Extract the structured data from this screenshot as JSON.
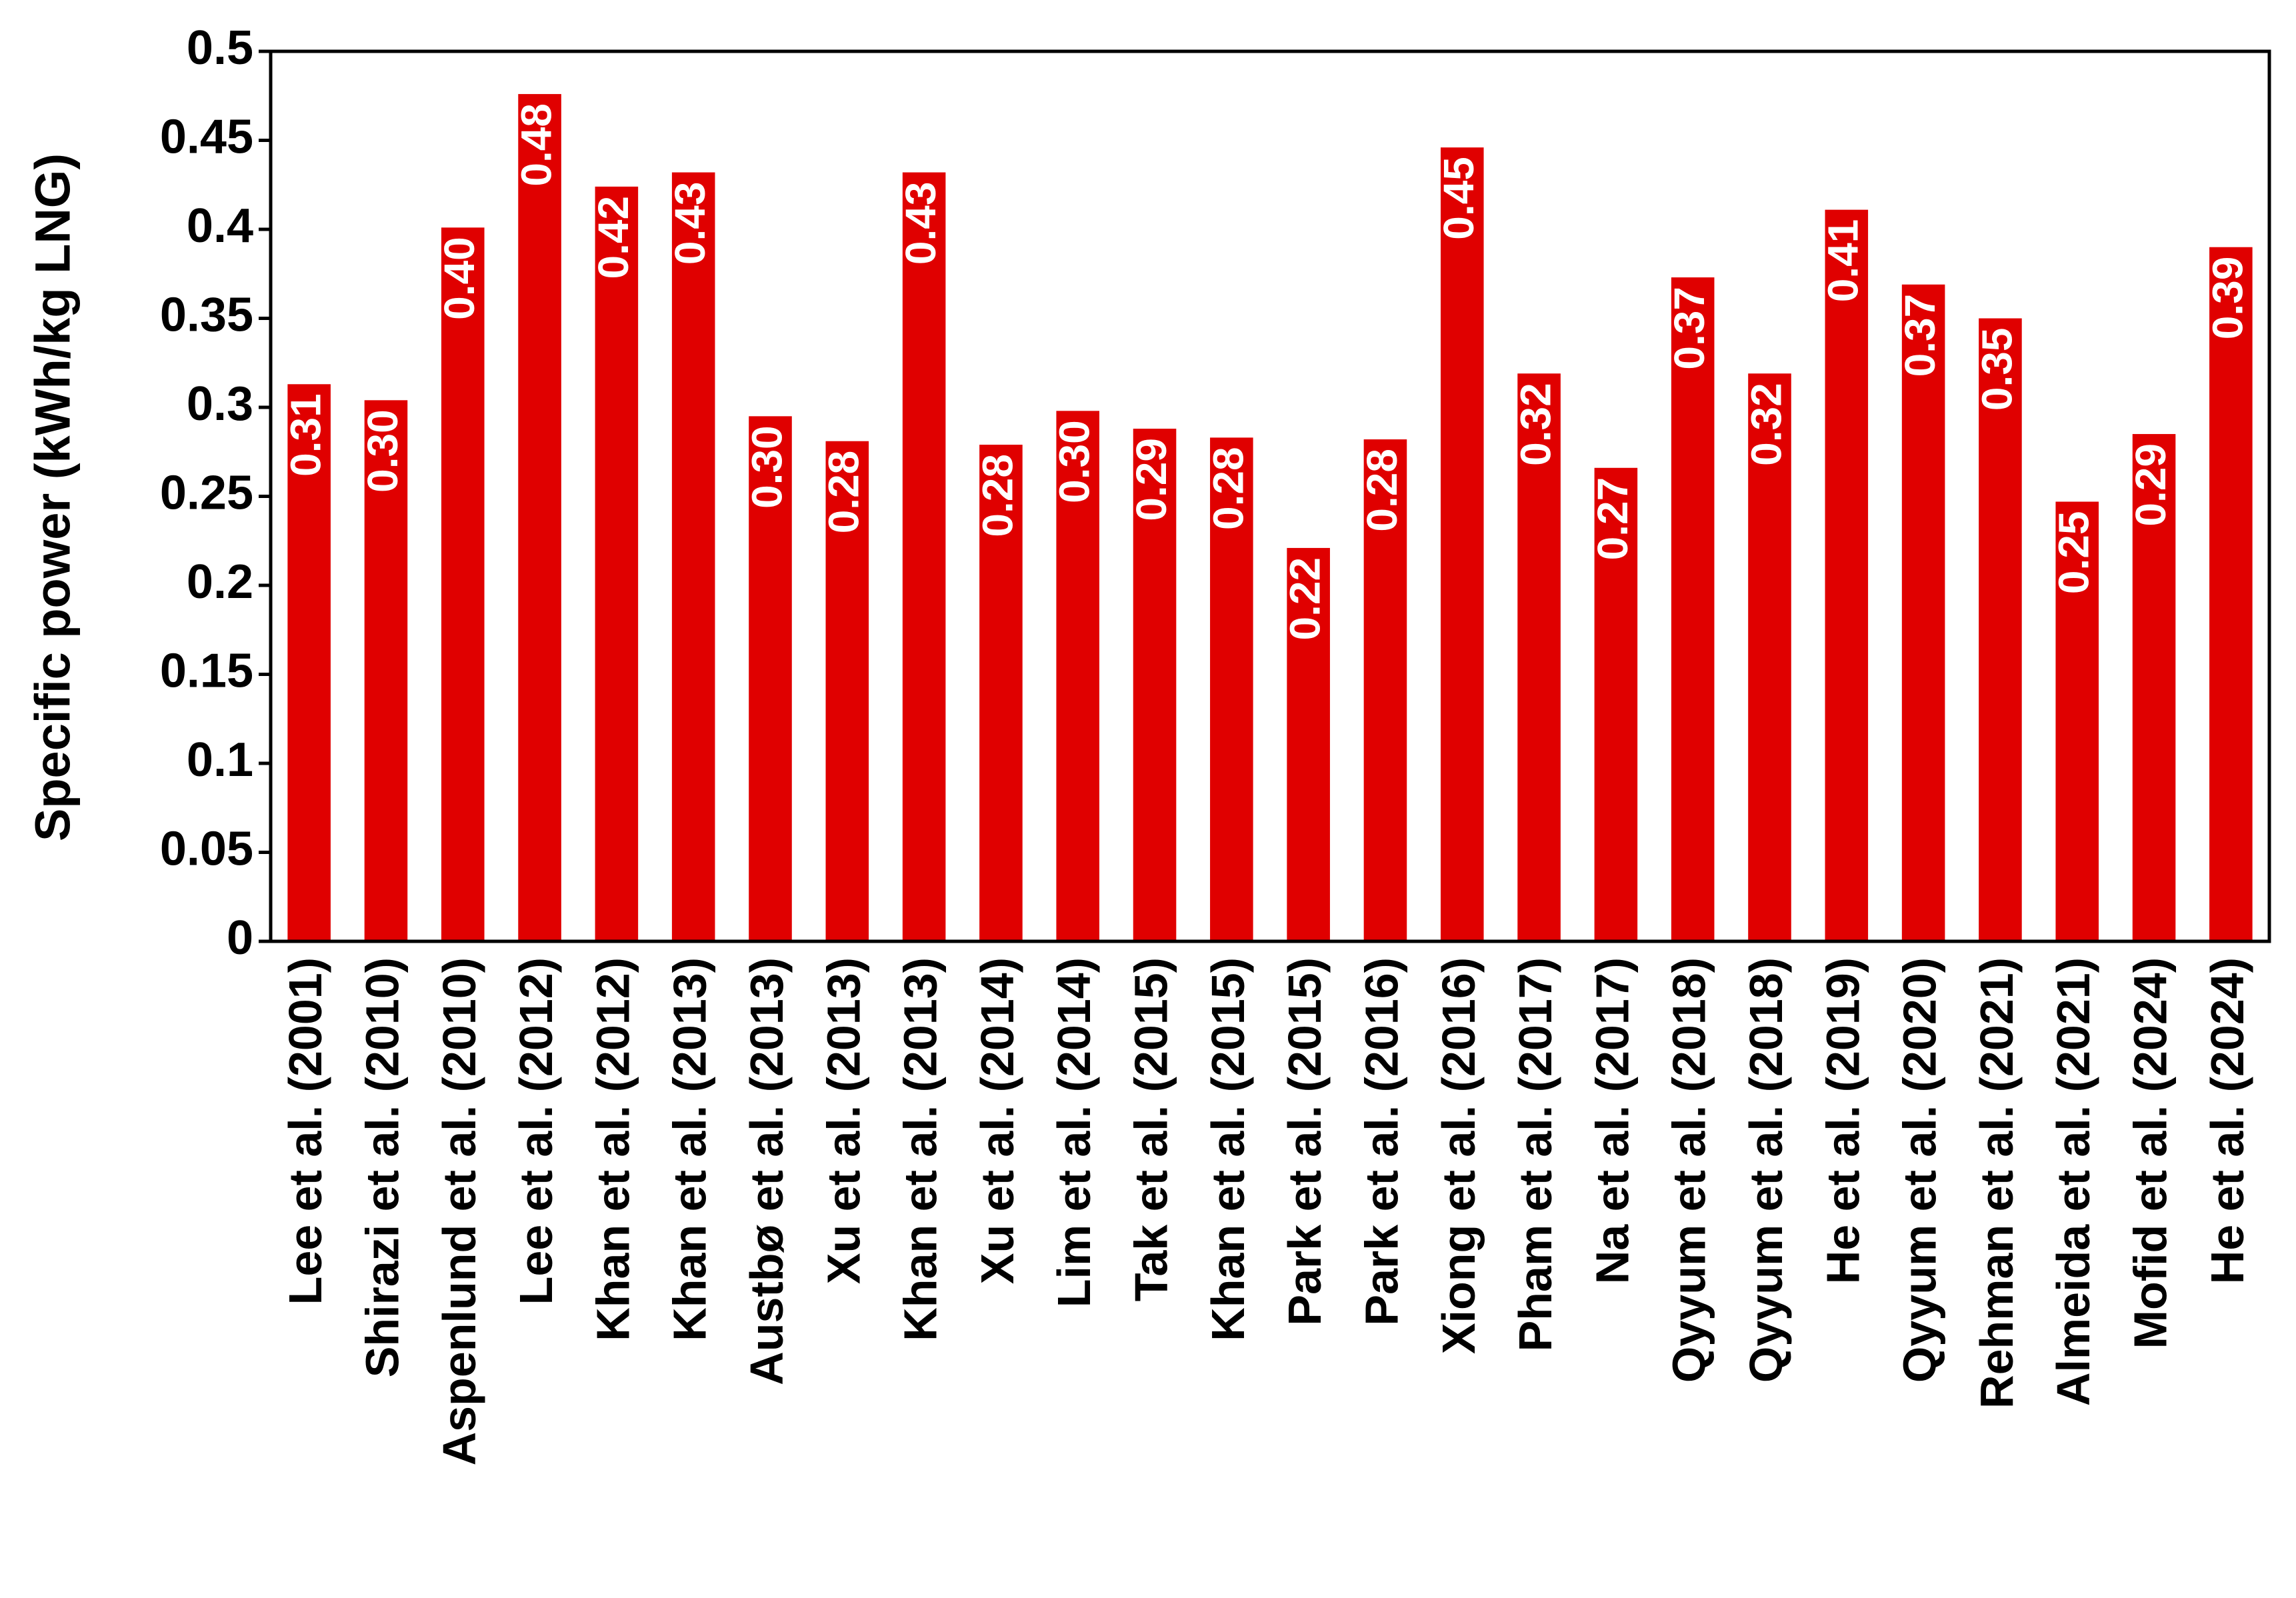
{
  "chart_data": {
    "type": "bar",
    "y_label": "Specific power (kWh/kg LNG)",
    "categories": [
      "Lee et al. (2001)",
      "Shirazi et al. (2010)",
      "Aspenlund et al. (2010)",
      "Lee et al. (2012)",
      "Khan et al. (2012)",
      "Khan et al. (2013)",
      "Austbø et al. (2013)",
      "Xu et al. (2013)",
      "Khan et al. (2013)",
      "Xu et al. (2014)",
      "Lim et al. (2014)",
      "Tak et al. (2015)",
      "Khan et al. (2015)",
      "Park et al. (2015)",
      "Park et al. (2016)",
      "Xiong et al. (2016)",
      "Pham et al. (2017)",
      "Na et al. (2017)",
      "Qyyum et al. (2018)",
      "Qyyum et al. (2018)",
      "He et al. (2019)",
      "Qyyum et al. (2020)",
      "Rehman et al. (2021)",
      "Almeida et al. (2021)",
      "Mofid et al. (2024)",
      "He et al. (2024)"
    ],
    "values": [
      0.313,
      0.304,
      0.401,
      0.476,
      0.424,
      0.432,
      0.295,
      0.281,
      0.432,
      0.279,
      0.298,
      0.288,
      0.283,
      0.221,
      0.282,
      0.446,
      0.319,
      0.266,
      0.373,
      0.319,
      0.411,
      0.369,
      0.35,
      0.247,
      0.285,
      0.39
    ],
    "value_labels": [
      "0.31",
      "0.30",
      "0.40",
      "0.48",
      "0.42",
      "0.43",
      "0.30",
      "0.28",
      "0.43",
      "0.28",
      "0.30",
      "0.29",
      "0.28",
      "0.22",
      "0.28",
      "0.45",
      "0.32",
      "0.27",
      "0.37",
      "0.32",
      "0.41",
      "0.37",
      "0.35",
      "0.25",
      "0.29",
      "0.39"
    ],
    "color": "#e00000",
    "ylim": [
      0,
      0.5
    ],
    "yticks": [
      0,
      0.05,
      0.1,
      0.15,
      0.2,
      0.25,
      0.3,
      0.35,
      0.4,
      0.45,
      0.5
    ],
    "grid": false
  }
}
